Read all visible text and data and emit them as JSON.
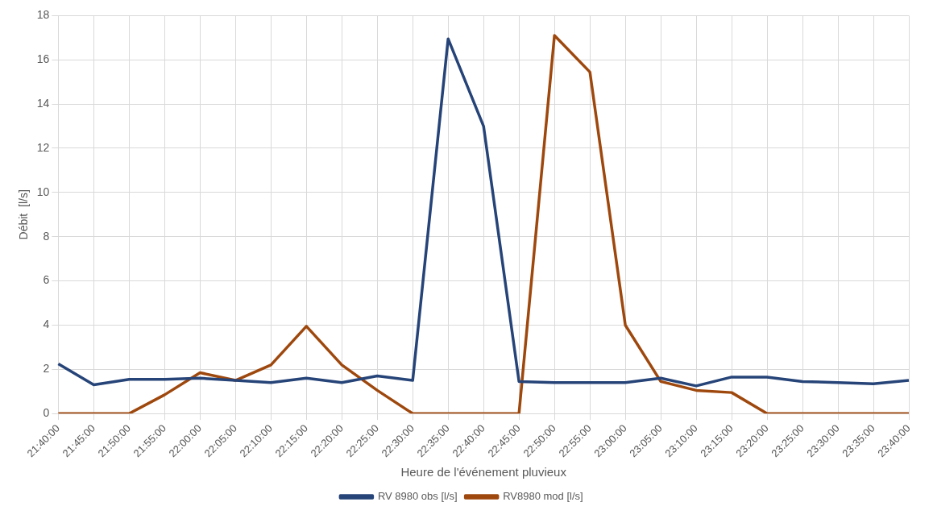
{
  "chart_data": {
    "type": "line",
    "xlabel": "Heure de l'événement pluvieux",
    "ylabel": "Débit  [l/s]",
    "categories": [
      "21:40:00",
      "21:45:00",
      "21:50:00",
      "21:55:00",
      "22:00:00",
      "22:05:00",
      "22:10:00",
      "22:15:00",
      "22:20:00",
      "22:25:00",
      "22:30:00",
      "22:35:00",
      "22:40:00",
      "22:45:00",
      "22:50:00",
      "22:55:00",
      "23:00:00",
      "23:05:00",
      "23:10:00",
      "23:15:00",
      "23:20:00",
      "23:25:00",
      "23:30:00",
      "23:35:00",
      "23:40:00"
    ],
    "series": [
      {
        "name": "RV 8980 obs [l/s]",
        "color": "#264478",
        "values": [
          2.25,
          1.3,
          1.55,
          1.55,
          1.6,
          1.5,
          1.4,
          1.6,
          1.4,
          1.7,
          1.5,
          16.95,
          13,
          1.45,
          1.4,
          1.4,
          1.4,
          1.6,
          1.25,
          1.65,
          1.65,
          1.45,
          1.4,
          1.35,
          1.5
        ]
      },
      {
        "name": "RV8980 mod [l/s]",
        "color": "#9e480e",
        "values": [
          0,
          0,
          0,
          0.85,
          1.85,
          1.5,
          2.2,
          3.95,
          2.2,
          1.05,
          0,
          0,
          0,
          0,
          17.1,
          15.45,
          4,
          1.45,
          1.05,
          0.95,
          0,
          0,
          0,
          0,
          0
        ]
      }
    ],
    "ylim": [
      0,
      18
    ],
    "yticks": [
      0,
      2,
      4,
      6,
      8,
      10,
      12,
      14,
      16,
      18
    ],
    "grid": true,
    "legend": "bottom",
    "marker": "none",
    "line_style": "solid"
  }
}
